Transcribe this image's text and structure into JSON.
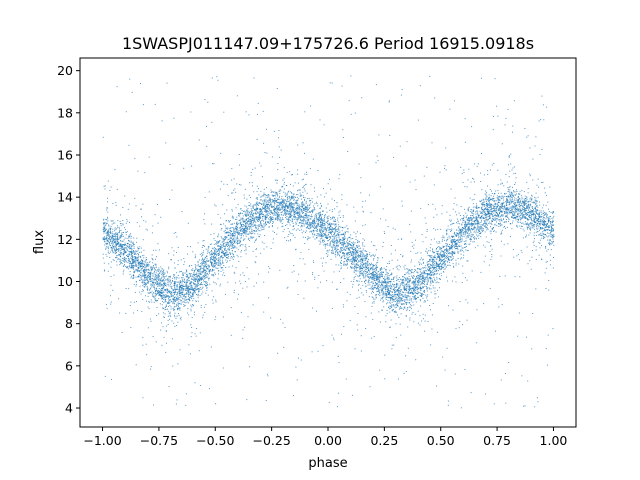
{
  "chart_data": {
    "type": "scatter",
    "title": "1SWASPJ011147.09+175726.6 Period 16915.0918s",
    "xlabel": "phase",
    "ylabel": "flux",
    "xlim": [
      -1.1,
      1.1
    ],
    "ylim": [
      3.1,
      20.6
    ],
    "x_ticks": [
      -1.0,
      -0.75,
      -0.5,
      -0.25,
      0.0,
      0.25,
      0.5,
      0.75,
      1.0
    ],
    "x_tick_labels": [
      "−1.00",
      "−0.75",
      "−0.50",
      "−0.25",
      "0.00",
      "0.25",
      "0.50",
      "0.75",
      "1.00"
    ],
    "y_ticks": [
      4,
      6,
      8,
      10,
      12,
      14,
      16,
      18,
      20
    ],
    "y_tick_labels": [
      "4",
      "6",
      "8",
      "10",
      "12",
      "14",
      "16",
      "18",
      "20"
    ],
    "grid": false,
    "point_color": "#1f77b4",
    "series": [
      {
        "trend": {
          "x": [
            -1.0,
            -0.9,
            -0.8,
            -0.7,
            -0.6,
            -0.5,
            -0.4,
            -0.3,
            -0.2,
            -0.1,
            0.0,
            0.1,
            0.2,
            0.3,
            0.4,
            0.5,
            0.6,
            0.7,
            0.8,
            0.9,
            1.0
          ],
          "y": [
            12.4,
            11.5,
            10.3,
            9.4,
            9.9,
            11.1,
            12.4,
            13.3,
            13.6,
            13.2,
            12.4,
            11.4,
            10.2,
            9.4,
            9.9,
            11.1,
            12.4,
            13.3,
            13.6,
            13.2,
            12.4
          ]
        },
        "core_spread": 0.45,
        "outlier_range": [
          4.0,
          19.8
        ]
      }
    ]
  }
}
